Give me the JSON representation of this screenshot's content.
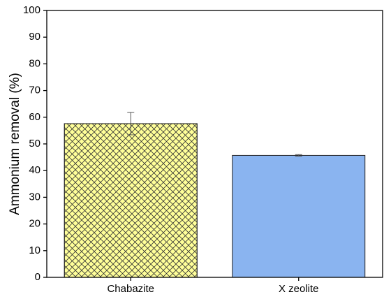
{
  "chart_data": {
    "type": "bar",
    "ylabel": "Ammonium removal (%)",
    "categories": [
      "Chabazite",
      "X zeolite"
    ],
    "values": [
      57.6,
      45.7
    ],
    "errors": [
      4.2,
      0.3
    ],
    "colors": [
      "#ffff99",
      "#8ab4f0"
    ],
    "hatches": [
      "cross",
      "none"
    ],
    "ylim": [
      0,
      100
    ],
    "yticks": [
      0,
      10,
      20,
      30,
      40,
      50,
      60,
      70,
      80,
      90,
      100
    ]
  }
}
